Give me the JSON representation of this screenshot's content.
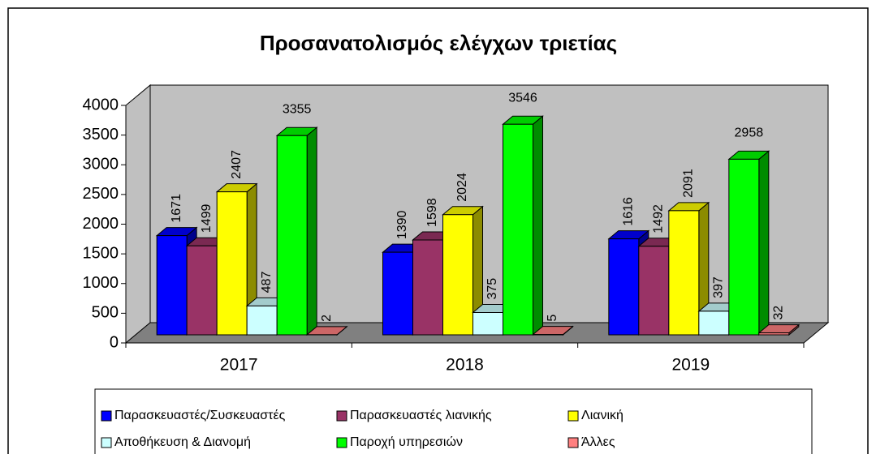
{
  "chart_data": {
    "type": "bar3d",
    "title": "Προσανατολισμός ελέγχων τριετίας",
    "categories": [
      "2017",
      "2018",
      "2019"
    ],
    "series": [
      {
        "name": "Παρασκευαστές/Συσκευαστές",
        "color": "#0000ff",
        "values": [
          1671,
          1390,
          1616
        ]
      },
      {
        "name": "Παρασκευαστές λιανικής",
        "color": "#993366",
        "values": [
          1499,
          1598,
          1492
        ]
      },
      {
        "name": "Λιανική",
        "color": "#ffff00",
        "values": [
          2407,
          2024,
          2091
        ]
      },
      {
        "name": "Αποθήκευση & Διανομή",
        "color": "#ccffff",
        "values": [
          487,
          375,
          397
        ]
      },
      {
        "name": "Παροχή υπηρεσιών",
        "color": "#00ff00",
        "values": [
          3355,
          3546,
          2958
        ]
      },
      {
        "name": "Άλλες",
        "color": "#ff8080",
        "values": [
          2,
          5,
          32
        ]
      }
    ],
    "ylim": [
      0,
      4000
    ],
    "yticks": [
      0,
      500,
      1000,
      1500,
      2000,
      2500,
      3000,
      3500,
      4000
    ],
    "legend": "bottom"
  }
}
